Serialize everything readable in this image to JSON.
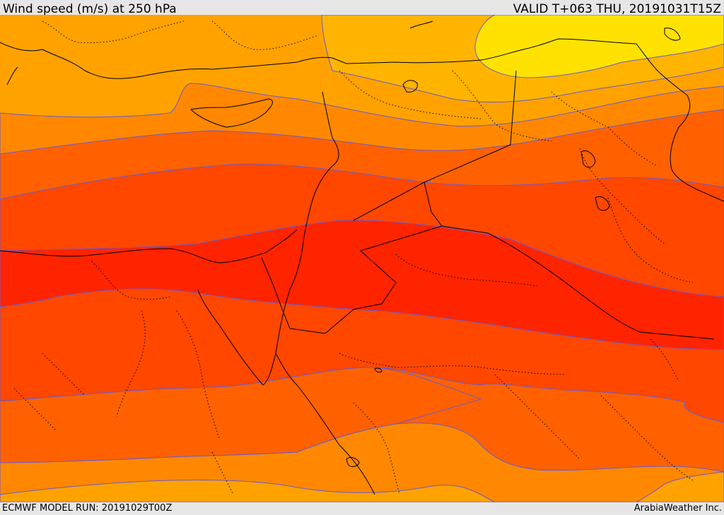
{
  "header": {
    "title": "Wind speed (m/s) at 250 hPa",
    "valid": "VALID T+063 THU, 20191031T15Z"
  },
  "footer": {
    "model_run": "ECMWF MODEL RUN: 20191029T00Z",
    "credit": "ArabiaWeather Inc."
  },
  "colors": {
    "band_1": "#FFA200",
    "band_2": "#FFB400",
    "band_3": "#FFE100",
    "band_4": "#FF8800",
    "band_5": "#FF6100",
    "band_6": "#FF4700",
    "band_7": "#FF2400",
    "contour_line": "#6a5acd",
    "border_line": "#000000"
  }
}
